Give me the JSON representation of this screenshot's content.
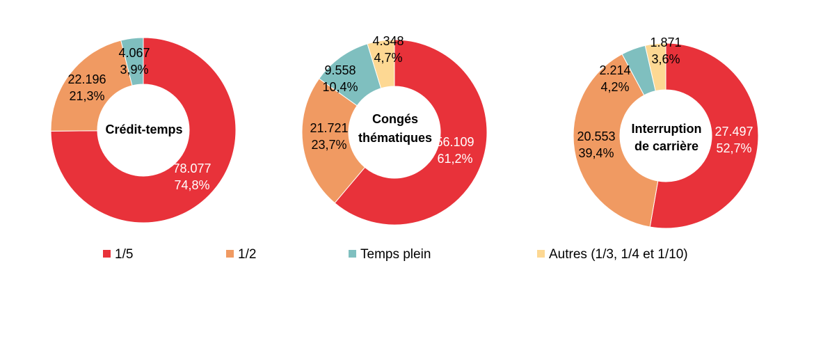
{
  "chart_data": [
    {
      "type": "pie",
      "donut": true,
      "title": [
        "Crédit-temps"
      ],
      "categories": [
        "1/5",
        "1/2",
        "Temps plein"
      ],
      "values": [
        78077,
        22196,
        4067
      ],
      "value_labels": [
        "78.077",
        "22.196",
        "4.067"
      ],
      "percent_labels": [
        "74,8%",
        "21,3%",
        "3,9%"
      ]
    },
    {
      "type": "pie",
      "donut": true,
      "title": [
        "Congés",
        "thématiques"
      ],
      "categories": [
        "1/5",
        "1/2",
        "Temps plein",
        "Autres (1/3, 1/4 et 1/10)"
      ],
      "values": [
        56109,
        21721,
        9558,
        4348
      ],
      "value_labels": [
        "56.109",
        "21.721",
        "9.558",
        "4.348"
      ],
      "percent_labels": [
        "61,2%",
        "23,7%",
        "10,4%",
        "4,7%"
      ]
    },
    {
      "type": "pie",
      "donut": true,
      "title": [
        "Interruption",
        "de carrière"
      ],
      "categories": [
        "1/5",
        "1/2",
        "Temps plein",
        "Autres (1/3, 1/4 et 1/10)"
      ],
      "values": [
        27497,
        20553,
        2214,
        1871
      ],
      "value_labels": [
        "27.497",
        "20.553",
        "2.214",
        "1.871"
      ],
      "percent_labels": [
        "52,7%",
        "39,4%",
        "4,2%",
        "3,6%"
      ]
    }
  ],
  "legend": {
    "position": "bottom",
    "items": [
      {
        "label": "1/5",
        "color": "#E8323A"
      },
      {
        "label": "1/2",
        "color": "#F09A62"
      },
      {
        "label": "Temps plein",
        "color": "#7FBFBF"
      },
      {
        "label": "Autres (1/3, 1/4 et 1/10)",
        "color": "#FDD893"
      }
    ]
  },
  "colors": {
    "1/5": "#E8323A",
    "1/2": "#F09A62",
    "Temps plein": "#7FBFBF",
    "Autres (1/3, 1/4 et 1/10)": "#FDD893"
  },
  "label_text_colors": {
    "1/5": "#FFFFFF",
    "other": "#000000"
  }
}
